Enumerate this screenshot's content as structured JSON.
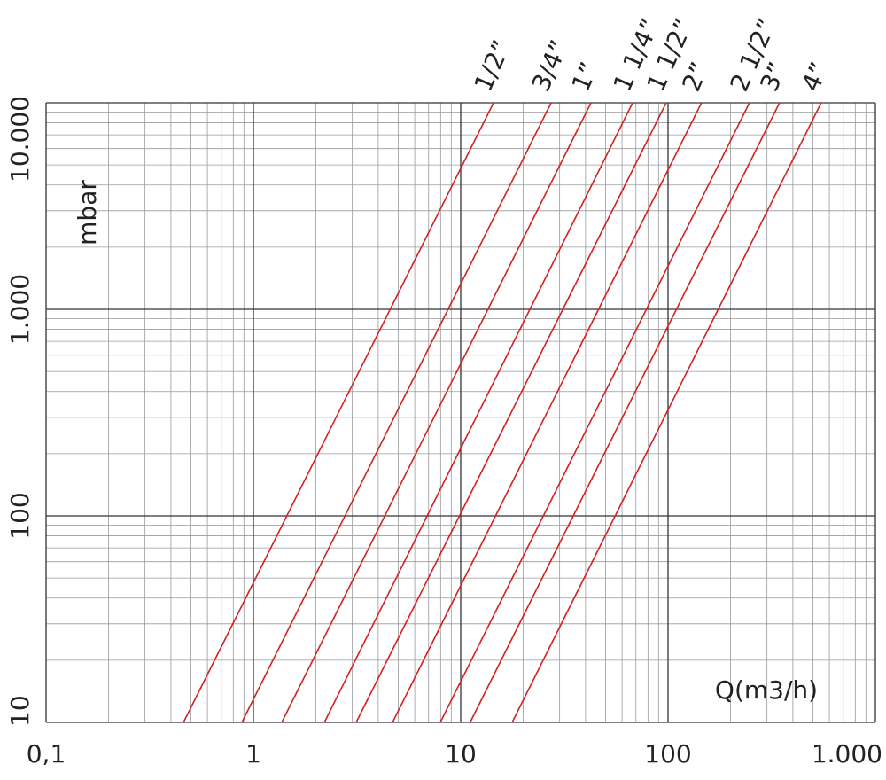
{
  "chart_data": {
    "type": "line",
    "x_label": "Q(m3/h)",
    "y_label": "mbar",
    "log_x": true,
    "log_y": true,
    "grid": true,
    "minor_grid": true,
    "xlim": [
      0.1,
      1000
    ],
    "ylim": [
      10,
      10000
    ],
    "xticks": [
      {
        "value": 0.1,
        "label": "0,1"
      },
      1,
      10,
      100,
      {
        "value": 1000,
        "label": "1.000"
      }
    ],
    "yticks": [
      10,
      100,
      {
        "value": 1000,
        "label": "1.000"
      },
      {
        "value": 10000,
        "label": "10.000"
      }
    ],
    "series": [
      {
        "name": "1/2”",
        "color": "#d42020",
        "x": [
          0.46,
          14.4
        ],
        "values": [
          10,
          10000
        ]
      },
      {
        "name": "3/4”",
        "color": "#d42020",
        "x": [
          0.88,
          27.3
        ],
        "values": [
          10,
          10000
        ]
      },
      {
        "name": "1”",
        "color": "#d42020",
        "x": [
          1.37,
          42.5
        ],
        "values": [
          10,
          10000
        ]
      },
      {
        "name": "1 1/4”",
        "color": "#d42020",
        "x": [
          2.2,
          67.5
        ],
        "values": [
          10,
          10000
        ]
      },
      {
        "name": "1 1/2”",
        "color": "#d42020",
        "x": [
          3.13,
          98
        ],
        "values": [
          10,
          10000
        ]
      },
      {
        "name": "2”",
        "color": "#d42020",
        "x": [
          4.69,
          145
        ],
        "values": [
          10,
          10000
        ]
      },
      {
        "name": "2 1/2”",
        "color": "#d42020",
        "x": [
          7.97,
          247
        ],
        "values": [
          10,
          10000
        ]
      },
      {
        "name": "3”",
        "color": "#d42020",
        "x": [
          11.1,
          345
        ],
        "values": [
          10,
          10000
        ]
      },
      {
        "name": "4”",
        "color": "#d42020",
        "x": [
          17.7,
          548
        ],
        "values": [
          10,
          10000
        ]
      }
    ]
  }
}
